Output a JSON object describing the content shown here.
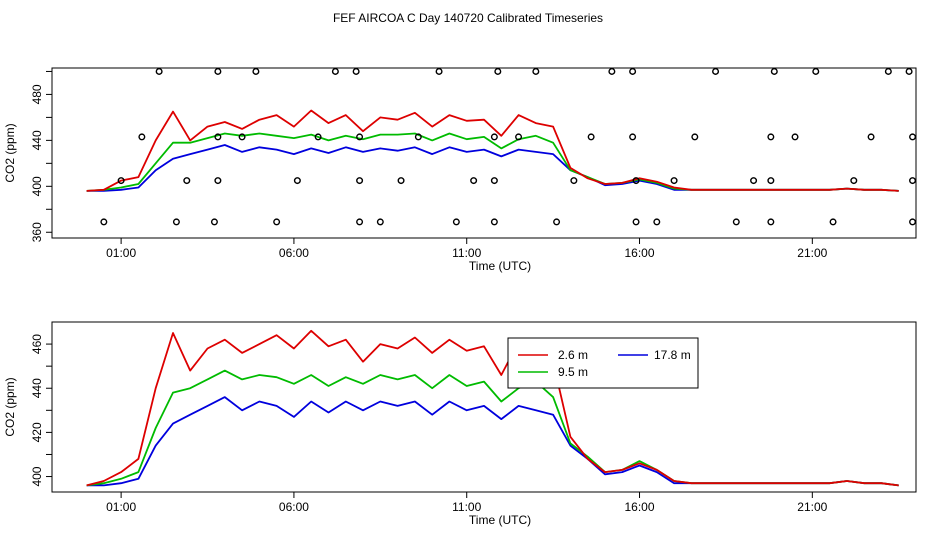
{
  "figure": {
    "title": "FEF AIRCOA C  Day 140720  Calibrated Timeseries"
  },
  "chart_data": [
    {
      "type": "line",
      "panel": "top",
      "xlabel": "Time (UTC)",
      "ylabel": "CO2 (ppm)",
      "xlim": [
        -1,
        24
      ],
      "ylim": [
        355,
        503
      ],
      "xticks": [
        1,
        6,
        11,
        16,
        21
      ],
      "xtick_labels": [
        "01:00",
        "06:00",
        "11:00",
        "16:00",
        "21:00"
      ],
      "yticks": [
        360,
        400,
        440,
        480
      ],
      "ytick_labels": [
        "360",
        "400",
        "440",
        "480"
      ],
      "minor_yticks": [
        380,
        420,
        460,
        500
      ],
      "legend": null,
      "x": [
        0,
        0.5,
        1,
        1.5,
        2,
        2.5,
        3,
        3.5,
        4,
        4.5,
        5,
        5.5,
        6,
        6.5,
        7,
        7.5,
        8,
        8.5,
        9,
        9.5,
        10,
        10.5,
        11,
        11.5,
        12,
        12.5,
        13,
        13.5,
        14,
        14.5,
        15,
        15.5,
        16,
        16.5,
        17,
        17.5,
        18,
        18.5,
        19,
        19.5,
        20,
        20.5,
        21,
        21.5,
        22,
        22.5,
        23,
        23.5
      ],
      "series": [
        {
          "name": "2.6 m",
          "color": "#dd0000",
          "values": [
            396,
            397,
            405,
            408,
            440,
            465,
            440,
            452,
            456,
            450,
            458,
            462,
            452,
            466,
            455,
            462,
            448,
            460,
            458,
            464,
            452,
            462,
            457,
            458,
            444,
            462,
            455,
            452,
            416,
            407,
            402,
            403,
            407,
            404,
            399,
            397,
            397,
            397,
            397,
            397,
            397,
            397,
            397,
            397,
            398,
            397,
            397,
            396
          ]
        },
        {
          "name": "9.5 m",
          "color": "#00bb00",
          "values": [
            396,
            397,
            399,
            402,
            420,
            438,
            438,
            442,
            446,
            444,
            446,
            444,
            442,
            445,
            440,
            444,
            441,
            445,
            445,
            446,
            440,
            446,
            441,
            443,
            433,
            441,
            444,
            438,
            414,
            408,
            402,
            403,
            406,
            403,
            398,
            397,
            397,
            397,
            397,
            397,
            397,
            397,
            397,
            397,
            398,
            397,
            397,
            396
          ]
        },
        {
          "name": "17.8 m",
          "color": "#0000dd",
          "values": [
            396,
            396,
            397,
            399,
            414,
            424,
            428,
            432,
            436,
            430,
            434,
            432,
            428,
            433,
            429,
            434,
            430,
            433,
            431,
            434,
            428,
            434,
            430,
            432,
            426,
            432,
            430,
            428,
            414,
            408,
            401,
            402,
            405,
            402,
            397,
            397,
            397,
            397,
            397,
            397,
            397,
            397,
            397,
            397,
            398,
            397,
            397,
            396
          ]
        }
      ],
      "points": {
        "name": "calibration",
        "color": "#000000",
        "x": [
          2.1,
          3.8,
          4.9,
          7.2,
          7.8,
          10.2,
          11.9,
          13.0,
          15.2,
          15.8,
          18.2,
          19.9,
          21.1,
          23.2,
          23.8,
          1.0,
          2.9,
          3.8,
          6.1,
          7.9,
          9.1,
          11.2,
          11.8,
          14.1,
          15.9,
          17.0,
          19.3,
          19.8,
          22.2,
          23.9,
          1.6,
          3.8,
          4.5,
          6.7,
          7.9,
          9.6,
          11.8,
          12.5,
          14.6,
          15.8,
          17.6,
          19.8,
          20.5,
          22.7,
          23.9,
          0.5,
          2.6,
          3.7,
          5.5,
          7.9,
          8.5,
          10.7,
          11.8,
          13.6,
          15.9,
          16.5,
          18.8,
          19.8,
          21.6,
          23.9
        ],
        "y": [
          500,
          500,
          500,
          500,
          500,
          500,
          500,
          500,
          500,
          500,
          500,
          500,
          500,
          500,
          500,
          405,
          405,
          405,
          405,
          405,
          405,
          405,
          405,
          405,
          405,
          405,
          405,
          405,
          405,
          405,
          443,
          443,
          443,
          443,
          443,
          443,
          443,
          443,
          443,
          443,
          443,
          443,
          443,
          443,
          443,
          369,
          369,
          369,
          369,
          369,
          369,
          369,
          369,
          369,
          369,
          369,
          369,
          369,
          369,
          369
        ]
      }
    },
    {
      "type": "line",
      "panel": "bottom",
      "xlabel": "Time (UTC)",
      "ylabel": "CO2 (ppm)",
      "xlim": [
        -1,
        24
      ],
      "ylim": [
        393,
        470
      ],
      "xticks": [
        1,
        6,
        11,
        16,
        21
      ],
      "xtick_labels": [
        "01:00",
        "06:00",
        "11:00",
        "16:00",
        "21:00"
      ],
      "yticks": [
        400,
        420,
        440,
        460
      ],
      "ytick_labels": [
        "400",
        "420",
        "440",
        "460"
      ],
      "minor_yticks": [
        410,
        430,
        450
      ],
      "legend": {
        "position": "top-right",
        "entries": [
          {
            "label": "2.6 m",
            "color": "#dd0000"
          },
          {
            "label": "17.8 m",
            "color": "#0000dd"
          },
          {
            "label": "9.5 m",
            "color": "#00bb00"
          }
        ]
      },
      "x": [
        0,
        0.5,
        1,
        1.5,
        2,
        2.5,
        3,
        3.5,
        4,
        4.5,
        5,
        5.5,
        6,
        6.5,
        7,
        7.5,
        8,
        8.5,
        9,
        9.5,
        10,
        10.5,
        11,
        11.5,
        12,
        12.5,
        13,
        13.5,
        14,
        14.5,
        15,
        15.5,
        16,
        16.5,
        17,
        17.5,
        18,
        18.5,
        19,
        19.5,
        20,
        20.5,
        21,
        21.5,
        22,
        22.5,
        23,
        23.5
      ],
      "series": [
        {
          "name": "2.6 m",
          "color": "#dd0000",
          "values": [
            396,
            398,
            402,
            408,
            440,
            465,
            448,
            458,
            462,
            456,
            460,
            464,
            458,
            466,
            459,
            462,
            452,
            460,
            458,
            463,
            456,
            462,
            457,
            459,
            446,
            461,
            456,
            452,
            418,
            408,
            402,
            403,
            406,
            403,
            398,
            397,
            397,
            397,
            397,
            397,
            397,
            397,
            397,
            397,
            398,
            397,
            397,
            396
          ]
        },
        {
          "name": "9.5 m",
          "color": "#00bb00",
          "values": [
            396,
            397,
            399,
            402,
            422,
            438,
            440,
            444,
            448,
            444,
            446,
            445,
            442,
            446,
            441,
            445,
            442,
            446,
            444,
            446,
            440,
            446,
            441,
            443,
            434,
            440,
            443,
            436,
            415,
            409,
            402,
            403,
            407,
            403,
            398,
            397,
            397,
            397,
            397,
            397,
            397,
            397,
            397,
            397,
            398,
            397,
            397,
            396
          ]
        },
        {
          "name": "17.8 m",
          "color": "#0000dd",
          "values": [
            396,
            396,
            397,
            399,
            414,
            424,
            428,
            432,
            436,
            430,
            434,
            432,
            427,
            434,
            429,
            434,
            430,
            434,
            432,
            434,
            428,
            434,
            430,
            432,
            426,
            432,
            430,
            428,
            414,
            408,
            401,
            402,
            405,
            402,
            397,
            397,
            397,
            397,
            397,
            397,
            397,
            397,
            397,
            397,
            398,
            397,
            397,
            396
          ]
        }
      ]
    }
  ]
}
